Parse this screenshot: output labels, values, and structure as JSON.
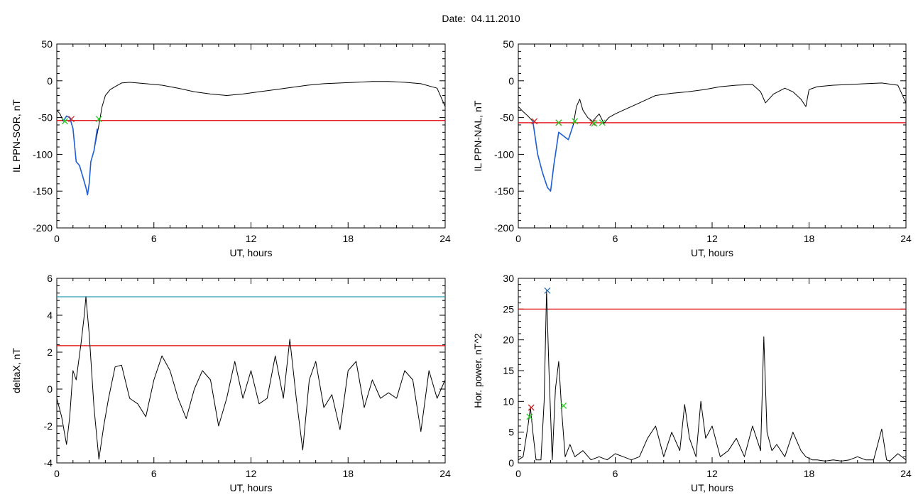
{
  "page": {
    "title": "Date:  04.11.2010"
  },
  "chart_data": [
    {
      "type": "line",
      "ylabel": "IL PPN-SOR, nT",
      "xlabel": "UT, hours",
      "xlim": [
        0,
        24
      ],
      "ylim": [
        -200,
        50
      ],
      "xticks": [
        0,
        6,
        12,
        18,
        24
      ],
      "yticks": [
        50,
        0,
        -50,
        -100,
        -150,
        -200
      ],
      "series": [
        {
          "color": "#000000",
          "x": [
            0,
            0.2,
            0.4,
            0.6,
            0.8,
            1.0,
            1.2,
            1.4,
            1.6,
            1.8,
            1.9,
            2.0,
            2.1,
            2.3,
            2.6,
            2.8,
            3.0,
            3.3,
            3.6,
            4.0,
            4.5,
            5.5,
            6.5,
            7.5,
            8.5,
            9.5,
            10.5,
            11.5,
            12.5,
            13.5,
            14.5,
            15.5,
            16.5,
            17.5,
            18.5,
            19.5,
            20.5,
            21.5,
            22.5,
            23.5,
            24
          ],
          "y": [
            -40,
            -45,
            -55,
            -48,
            -50,
            -65,
            -110,
            -115,
            -130,
            -145,
            -155,
            -140,
            -110,
            -95,
            -60,
            -35,
            -20,
            -12,
            -8,
            -3,
            -2,
            -4,
            -6,
            -10,
            -15,
            -18,
            -20,
            -18,
            -15,
            -12,
            -9,
            -6,
            -4,
            -3,
            -2,
            -1,
            -1,
            -2,
            -4,
            -10,
            -35
          ]
        },
        {
          "color": "#1f5fd6",
          "x": [
            0.4,
            0.6,
            0.8,
            1.0,
            1.2,
            1.4,
            1.6,
            1.8,
            1.9,
            2.0,
            2.1,
            2.3,
            2.5
          ],
          "y": [
            -55,
            -48,
            -50,
            -65,
            -110,
            -115,
            -130,
            -145,
            -155,
            -140,
            -110,
            -95,
            -65
          ]
        }
      ],
      "hlines": [
        {
          "y": -54,
          "color": "#e00000"
        }
      ],
      "markers": [
        {
          "x": 0.5,
          "y": -55,
          "color": "#22cc22"
        },
        {
          "x": 0.9,
          "y": -52,
          "color": "#cc2222"
        },
        {
          "x": 2.6,
          "y": -52,
          "color": "#22cc22"
        }
      ]
    },
    {
      "type": "line",
      "ylabel": "IL PPN-NAL, nT",
      "xlabel": "UT, hours",
      "xlim": [
        0,
        24
      ],
      "ylim": [
        -200,
        50
      ],
      "xticks": [
        0,
        6,
        12,
        18,
        24
      ],
      "yticks": [
        50,
        0,
        -50,
        -100,
        -150,
        -200
      ],
      "series": [
        {
          "color": "#000000",
          "x": [
            0,
            0.3,
            0.6,
            0.9,
            1.2,
            1.5,
            1.8,
            2.0,
            2.2,
            2.5,
            2.8,
            3.1,
            3.4,
            3.6,
            3.8,
            4.0,
            4.3,
            4.6,
            5.0,
            5.3,
            5.6,
            6.0,
            6.5,
            7.0,
            7.5,
            8.0,
            8.5,
            9.5,
            10.5,
            11.5,
            12.5,
            13.5,
            14.5,
            15.0,
            15.3,
            15.8,
            16.5,
            17.0,
            17.5,
            17.8,
            18.0,
            18.5,
            19.5,
            20.5,
            21.5,
            22.5,
            23.5,
            24
          ],
          "y": [
            -35,
            -42,
            -48,
            -55,
            -100,
            -125,
            -145,
            -150,
            -115,
            -70,
            -75,
            -80,
            -60,
            -35,
            -25,
            -40,
            -50,
            -55,
            -45,
            -58,
            -50,
            -45,
            -40,
            -35,
            -30,
            -25,
            -20,
            -17,
            -15,
            -12,
            -8,
            -6,
            -5,
            -15,
            -30,
            -18,
            -10,
            -15,
            -25,
            -35,
            -12,
            -8,
            -6,
            -5,
            -4,
            -3,
            -6,
            -30
          ]
        },
        {
          "color": "#1f5fd6",
          "x": [
            0.9,
            1.2,
            1.5,
            1.8,
            2.0,
            2.2,
            2.5,
            2.8,
            3.1,
            3.4
          ],
          "y": [
            -55,
            -100,
            -125,
            -145,
            -150,
            -115,
            -70,
            -75,
            -80,
            -60
          ]
        }
      ],
      "hlines": [
        {
          "y": -57,
          "color": "#e00000"
        }
      ],
      "markers": [
        {
          "x": 1.0,
          "y": -55,
          "color": "#cc2222"
        },
        {
          "x": 2.5,
          "y": -57,
          "color": "#cc2222"
        },
        {
          "x": 2.5,
          "y": -57,
          "color": "#22cc22"
        },
        {
          "x": 3.5,
          "y": -55,
          "color": "#22cc22"
        },
        {
          "x": 4.6,
          "y": -57,
          "color": "#cc2222"
        },
        {
          "x": 4.7,
          "y": -58,
          "color": "#22cc22"
        },
        {
          "x": 5.2,
          "y": -57,
          "color": "#22cc22"
        }
      ]
    },
    {
      "type": "line",
      "ylabel": "deltaX, nT",
      "xlabel": "UT, hours",
      "xlim": [
        0,
        24
      ],
      "ylim": [
        -4,
        6
      ],
      "xticks": [
        0,
        6,
        12,
        18,
        24
      ],
      "yticks": [
        6,
        4,
        2,
        0,
        -2,
        -4
      ],
      "series": [
        {
          "color": "#000000",
          "x": [
            0,
            0.3,
            0.6,
            0.8,
            1.0,
            1.2,
            1.5,
            1.7,
            1.8,
            2.0,
            2.3,
            2.6,
            2.9,
            3.2,
            3.6,
            4.0,
            4.5,
            5.0,
            5.5,
            6.0,
            6.5,
            7.0,
            7.5,
            8.0,
            8.5,
            9.0,
            9.5,
            10.0,
            10.5,
            11.0,
            11.5,
            12.0,
            12.5,
            13.0,
            13.5,
            14.0,
            14.4,
            14.8,
            15.2,
            15.6,
            16.0,
            16.5,
            17.0,
            17.5,
            18.0,
            18.5,
            19.0,
            19.5,
            20.0,
            20.5,
            21.0,
            21.5,
            22.0,
            22.5,
            23.0,
            23.5,
            24
          ],
          "y": [
            -0.5,
            -1.5,
            -3.0,
            -1.5,
            1.0,
            0.5,
            2.5,
            4.0,
            5.0,
            3.0,
            -1.0,
            -3.8,
            -2.0,
            -0.5,
            1.2,
            1.3,
            -0.5,
            -0.8,
            -1.5,
            0.5,
            1.8,
            1.0,
            -0.5,
            -1.6,
            0.0,
            1.0,
            0.5,
            -2.0,
            -0.5,
            1.5,
            -0.5,
            1.0,
            -0.8,
            -0.5,
            1.8,
            -0.5,
            2.7,
            -0.5,
            -3.3,
            0.5,
            1.5,
            -1.0,
            -0.3,
            -2.2,
            1.0,
            1.5,
            -1.0,
            0.5,
            -0.5,
            -0.2,
            -0.5,
            1.0,
            0.5,
            -2.3,
            1.0,
            -0.5,
            0.5
          ]
        }
      ],
      "hlines": [
        {
          "y": 5.0,
          "color": "#2a9db0"
        },
        {
          "y": 2.35,
          "color": "#e00000"
        }
      ],
      "markers": []
    },
    {
      "type": "line",
      "ylabel": "Hor. power, nT^2",
      "xlabel": "UT, hours",
      "xlim": [
        0,
        24
      ],
      "ylim": [
        0,
        30
      ],
      "xticks": [
        0,
        6,
        12,
        18,
        24
      ],
      "yticks": [
        30,
        25,
        20,
        15,
        10,
        5,
        0
      ],
      "series": [
        {
          "color": "#000000",
          "x": [
            0,
            0.3,
            0.6,
            0.75,
            0.9,
            1.1,
            1.4,
            1.6,
            1.75,
            1.9,
            2.1,
            2.3,
            2.5,
            2.7,
            2.9,
            3.2,
            3.5,
            4.0,
            4.5,
            5.0,
            5.5,
            6.0,
            6.5,
            7.0,
            7.5,
            8.0,
            8.5,
            9.0,
            9.5,
            10.0,
            10.3,
            10.6,
            11.0,
            11.3,
            11.6,
            12.0,
            12.5,
            13.0,
            13.5,
            14.0,
            14.5,
            15.0,
            15.2,
            15.4,
            15.7,
            16.0,
            16.5,
            17.0,
            17.5,
            17.8,
            18.2,
            18.5,
            19.0,
            19.5,
            20.0,
            20.5,
            21.0,
            21.5,
            22.0,
            22.5,
            22.8,
            23.0,
            23.5,
            24
          ],
          "y": [
            0.5,
            1.0,
            6.0,
            9.0,
            5.0,
            0.5,
            0.5,
            10.0,
            28.0,
            15.0,
            0.5,
            12.0,
            16.5,
            8.0,
            1.0,
            3.0,
            1.0,
            2.0,
            0.5,
            1.0,
            0.5,
            1.5,
            1.0,
            0.5,
            1.0,
            4.0,
            6.0,
            1.0,
            5.0,
            2.0,
            9.5,
            4.0,
            1.0,
            10.0,
            4.0,
            6.0,
            1.0,
            2.0,
            4.0,
            1.0,
            6.0,
            2.0,
            20.5,
            5.0,
            2.0,
            3.0,
            1.0,
            5.0,
            2.0,
            1.0,
            0.5,
            0.5,
            0.3,
            0.5,
            0.3,
            0.5,
            1.0,
            0.5,
            0.5,
            5.5,
            0.5,
            0.3,
            1.5,
            0.5
          ]
        }
      ],
      "hlines": [
        {
          "y": 25,
          "color": "#e00000"
        }
      ],
      "markers": [
        {
          "x": 0.7,
          "y": 7.5,
          "color": "#22cc22"
        },
        {
          "x": 0.8,
          "y": 9.0,
          "color": "#cc2222"
        },
        {
          "x": 1.8,
          "y": 28,
          "color": "#2a6db0"
        },
        {
          "x": 2.8,
          "y": 9.3,
          "color": "#22cc22"
        }
      ]
    }
  ]
}
